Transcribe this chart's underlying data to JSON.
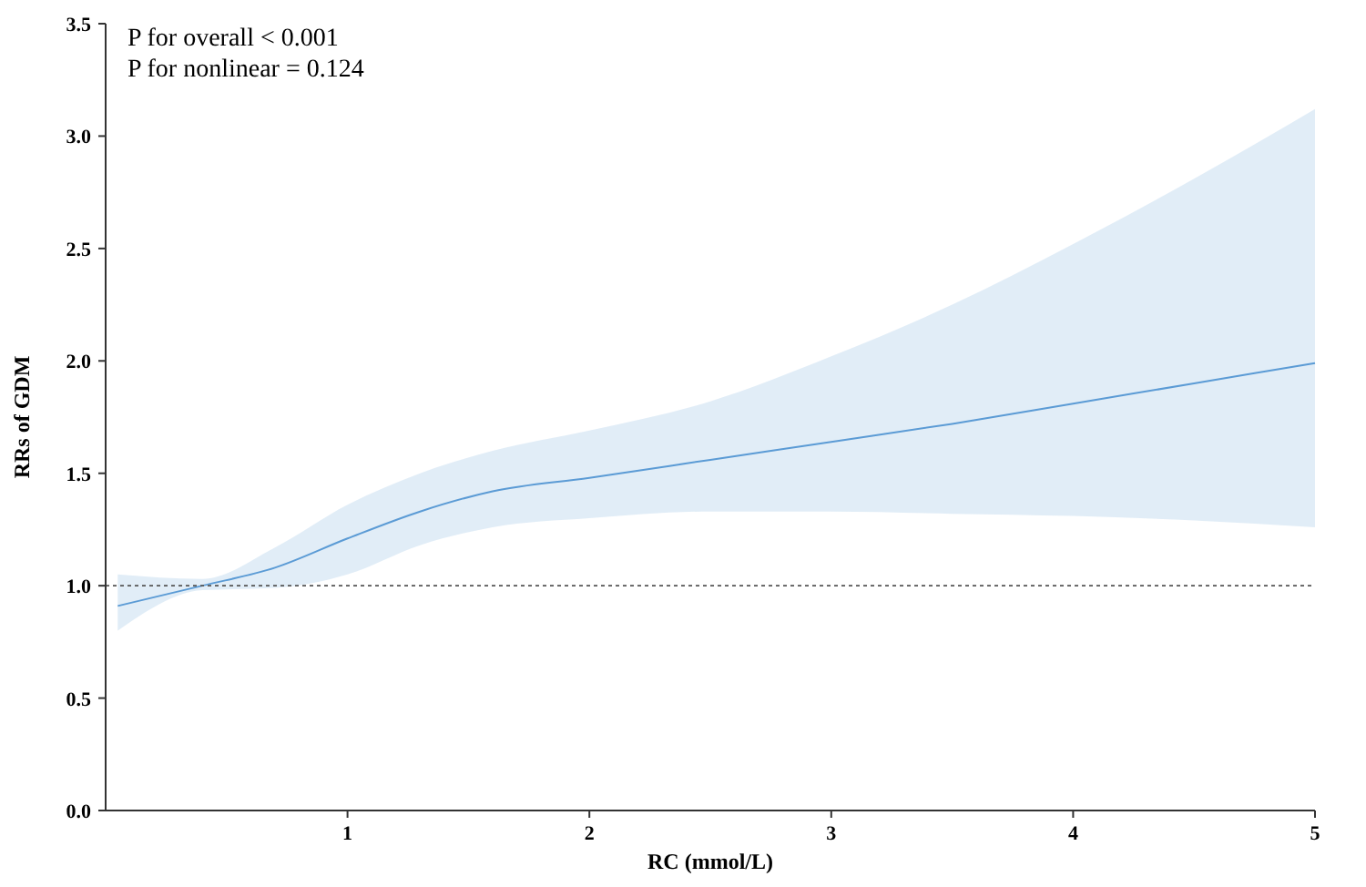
{
  "chart_data": {
    "type": "line",
    "xlabel": "RC (mmol/L)",
    "ylabel": "RRs of GDM",
    "annotations": [
      "P for overall < 0.001",
      "P for nonlinear = 0.124"
    ],
    "x": [
      0.05,
      0.4,
      0.7,
      1.0,
      1.3,
      1.6,
      2.0,
      2.5,
      3.0,
      3.5,
      4.0,
      4.5,
      5.0
    ],
    "series": [
      {
        "color": "#5b9bd5",
        "values": [
          0.91,
          1.0,
          1.08,
          1.21,
          1.33,
          1.42,
          1.48,
          1.56,
          1.64,
          1.72,
          1.81,
          1.9,
          1.99
        ],
        "lower": [
          0.8,
          0.98,
          0.99,
          1.05,
          1.18,
          1.26,
          1.3,
          1.33,
          1.33,
          1.32,
          1.31,
          1.29,
          1.26
        ],
        "upper": [
          1.05,
          1.03,
          1.17,
          1.36,
          1.5,
          1.6,
          1.69,
          1.82,
          2.02,
          2.25,
          2.52,
          2.81,
          3.12
        ]
      }
    ],
    "xlim": [
      0,
      5
    ],
    "xticks": [
      1,
      2,
      3,
      4,
      5
    ],
    "ylim": [
      0,
      3.5
    ],
    "yticks": [
      {
        "value": 0,
        "label": "0.0"
      },
      {
        "value": 0.5,
        "label": "0.5"
      },
      {
        "value": 1,
        "label": "1.0"
      },
      {
        "value": 1.5,
        "label": "1.5"
      },
      {
        "value": 2,
        "label": "2.0"
      },
      {
        "value": 2.5,
        "label": "2.5"
      },
      {
        "value": 3,
        "label": "3.0"
      },
      {
        "value": 3.5,
        "label": "3.5"
      }
    ],
    "ref_lines": [
      {
        "axis": "y",
        "value": 1,
        "color": "#555555",
        "line_style": "dotted"
      }
    ],
    "grid": false,
    "marker": "none",
    "line_style": "solid"
  }
}
